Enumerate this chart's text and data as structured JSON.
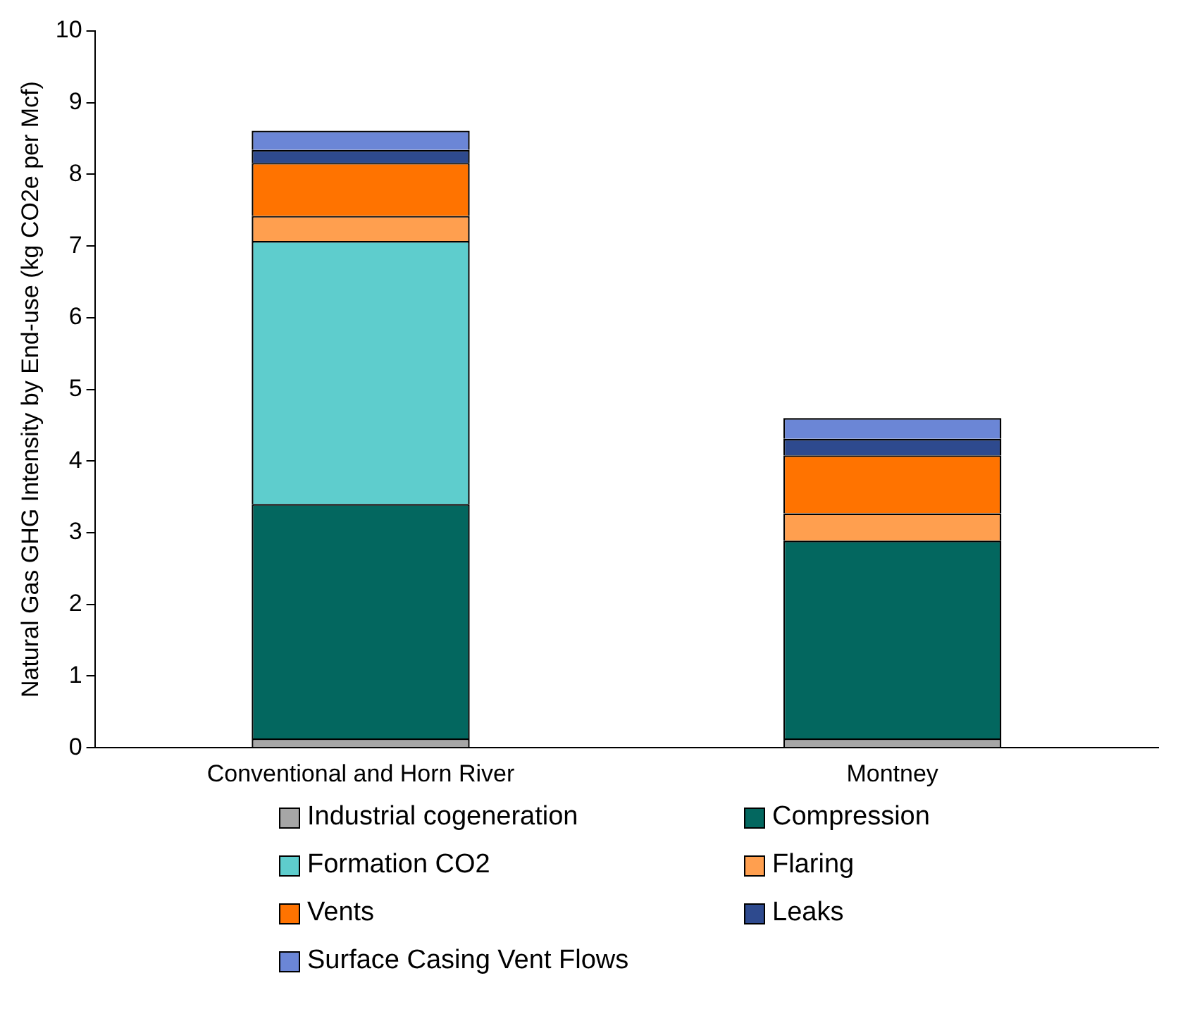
{
  "chart_data": {
    "type": "bar",
    "stacked": true,
    "ylabel": "Natural Gas GHG Intensity by End-use (kg CO2e per Mcf)",
    "categories": [
      "Conventional and Horn River",
      "Montney"
    ],
    "series": [
      {
        "name": "Industrial cogeneration",
        "color": "#a6a6a6",
        "values": [
          0.13,
          0.13
        ]
      },
      {
        "name": "Compression",
        "color": "#03675f",
        "values": [
          3.27,
          2.76
        ]
      },
      {
        "name": "Formation CO2",
        "color": "#5ecdcd",
        "values": [
          3.67,
          0
        ]
      },
      {
        "name": "Flaring",
        "color": "#ff9f4f",
        "values": [
          0.35,
          0.38
        ]
      },
      {
        "name": "Vents",
        "color": "#ff7300",
        "values": [
          0.74,
          0.81
        ]
      },
      {
        "name": "Leaks",
        "color": "#2e4a8e",
        "values": [
          0.18,
          0.23
        ]
      },
      {
        "name": "Surface Casing Vent Flows",
        "color": "#6b86d6",
        "values": [
          0.27,
          0.29
        ]
      }
    ],
    "ylim": [
      0,
      10
    ],
    "yticks": [
      0,
      1,
      2,
      3,
      4,
      5,
      6,
      7,
      8,
      9,
      10
    ],
    "grid": false,
    "legend": "bottom"
  }
}
